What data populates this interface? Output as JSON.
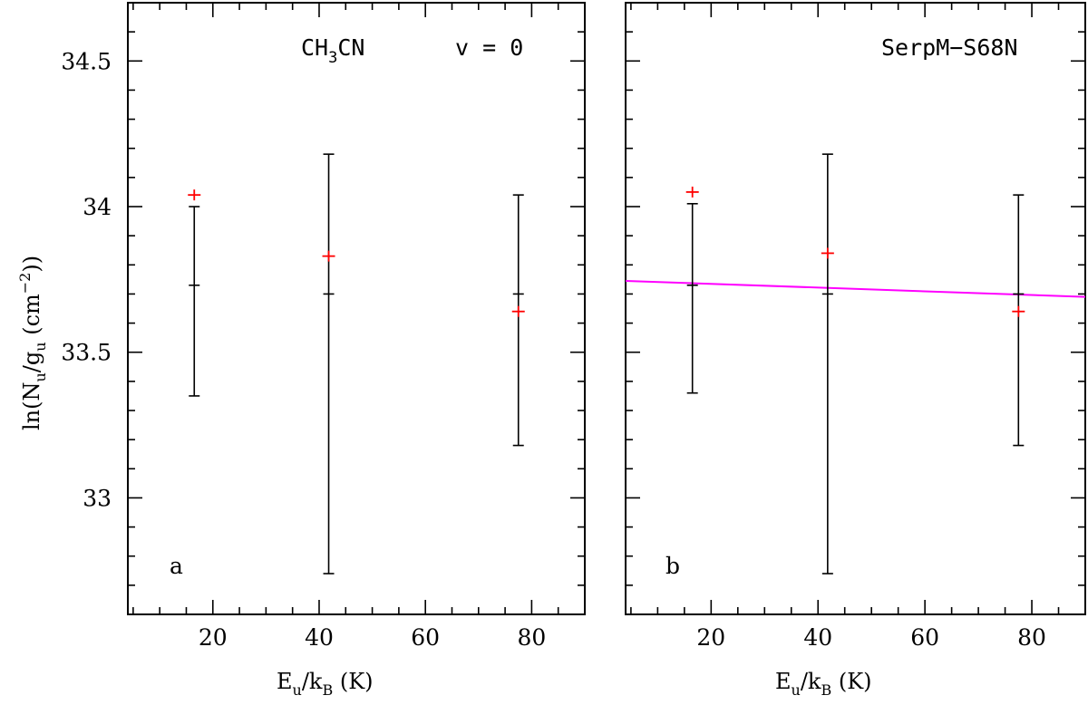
{
  "chart_data": [
    {
      "panel": "a",
      "type": "scatter",
      "xlabel": {
        "main": "E",
        "sub1": "u",
        "mid": "/k",
        "sub2": "B",
        "end": " (K)"
      },
      "ylabel": {
        "p1": "ln(N",
        "s1": "u",
        "p2": "/g",
        "s2": "u",
        "p3": " (cm",
        "sup": "−2",
        "p4": "))"
      },
      "xlim": [
        4,
        90
      ],
      "ylim": [
        32.6,
        34.7
      ],
      "xticks": [
        20,
        40,
        60,
        80
      ],
      "yticks": [
        33,
        33.5,
        34,
        34.5
      ],
      "annotation": {
        "mol": "CH",
        "sub": "3",
        "rest": "CN",
        "state": "v = 0"
      },
      "panel_label": "a",
      "fitted": [
        {
          "x": 16.5,
          "y": 33.73,
          "ylo": 33.35,
          "yhi": 34.0
        },
        {
          "x": 41.8,
          "y": 33.7,
          "ylo": 32.74,
          "yhi": 34.18
        },
        {
          "x": 77.5,
          "y": 33.7,
          "ylo": 33.18,
          "yhi": 34.04
        }
      ],
      "observed": [
        {
          "x": 16.5,
          "y": 34.04
        },
        {
          "x": 41.8,
          "y": 33.83
        },
        {
          "x": 77.5,
          "y": 33.64
        }
      ]
    },
    {
      "panel": "b",
      "type": "scatter",
      "xlabel": {
        "main": "E",
        "sub1": "u",
        "mid": "/k",
        "sub2": "B",
        "end": " (K)"
      },
      "xlim": [
        4,
        90
      ],
      "ylim": [
        32.6,
        34.7
      ],
      "xticks": [
        20,
        40,
        60,
        80
      ],
      "yticks": [
        33,
        33.5,
        34,
        34.5
      ],
      "annotation": {
        "source": "SerpM−S68N"
      },
      "panel_label": "b",
      "fitted": [
        {
          "x": 16.5,
          "y": 33.73,
          "ylo": 33.36,
          "yhi": 34.01
        },
        {
          "x": 41.8,
          "y": 33.7,
          "ylo": 32.74,
          "yhi": 34.18
        },
        {
          "x": 77.5,
          "y": 33.7,
          "ylo": 33.18,
          "yhi": 34.04
        }
      ],
      "observed": [
        {
          "x": 16.5,
          "y": 34.05
        },
        {
          "x": 41.8,
          "y": 33.84
        },
        {
          "x": 77.5,
          "y": 33.64
        }
      ],
      "fit_line": {
        "x": [
          4,
          90
        ],
        "y": [
          33.745,
          33.69
        ],
        "color": "#ff00ff"
      }
    }
  ]
}
